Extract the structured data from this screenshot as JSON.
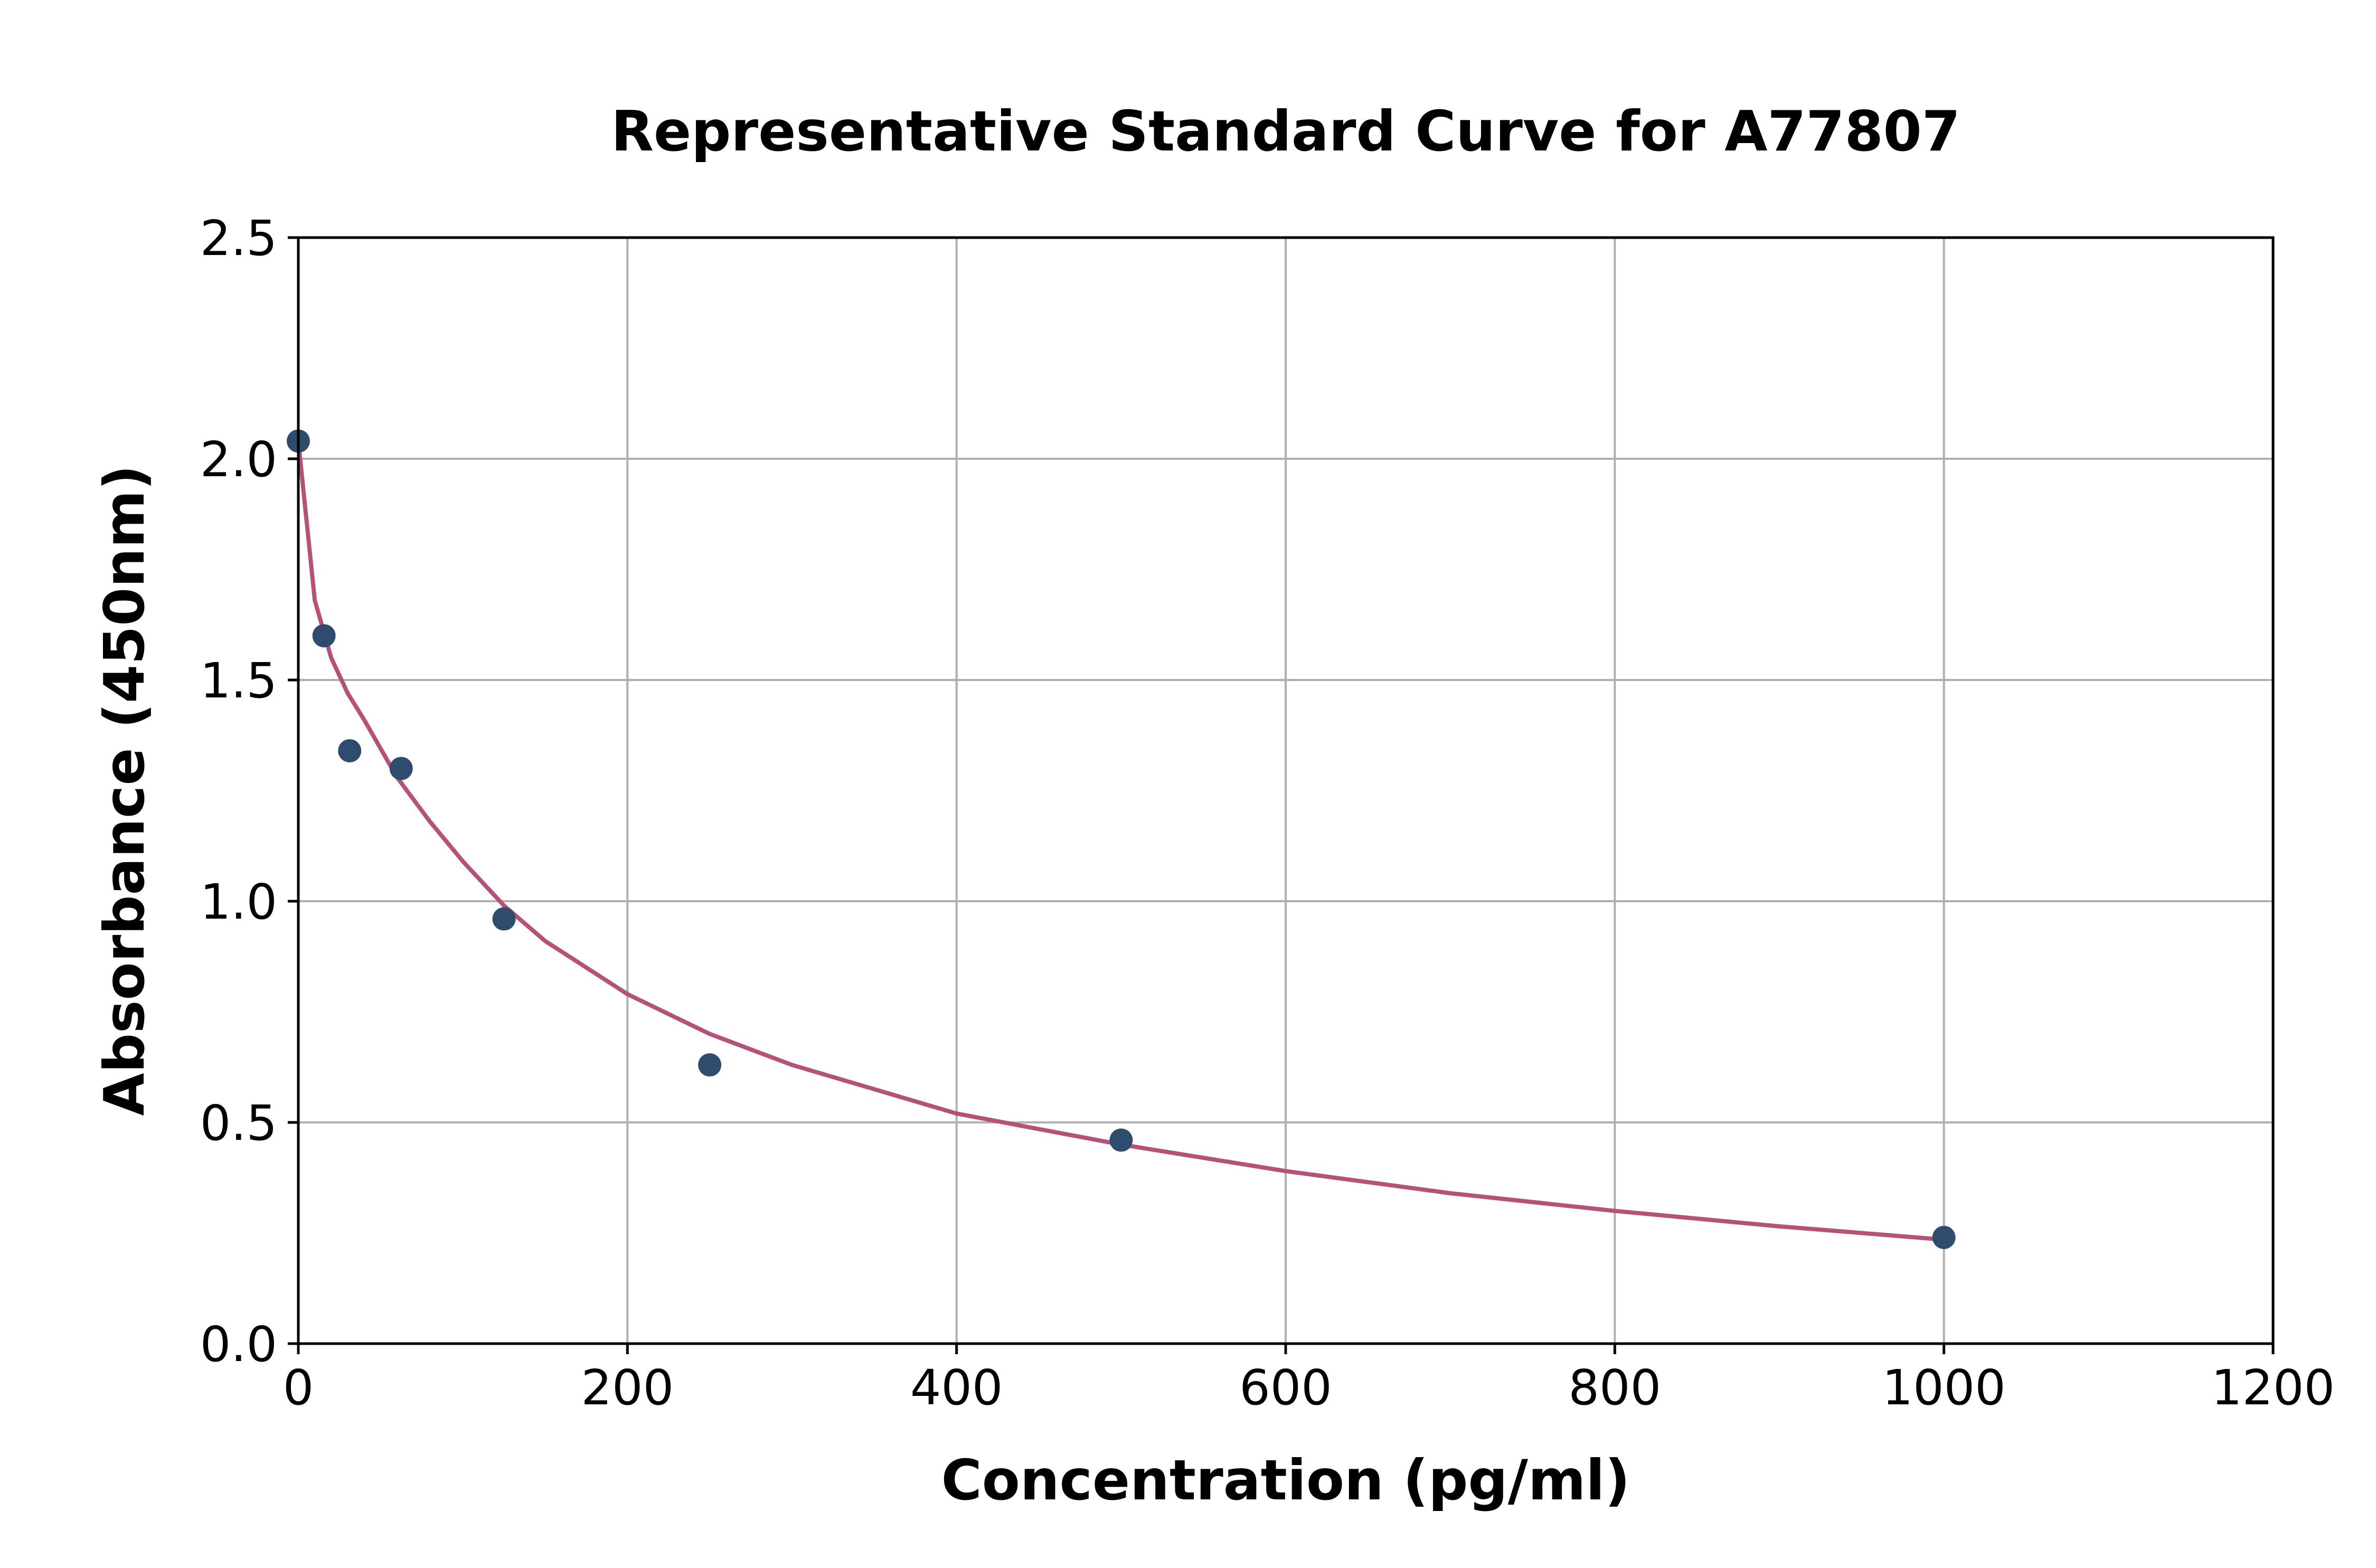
{
  "chart_data": {
    "type": "scatter",
    "title": "Representative Standard Curve for A77807",
    "xlabel": "Concentration (pg/ml)",
    "ylabel": "Absorbance (450nm)",
    "xlim": [
      0,
      1200
    ],
    "ylim": [
      0,
      2.5
    ],
    "xticks": [
      0,
      200,
      400,
      600,
      800,
      1000,
      1200
    ],
    "xtick_labels": [
      "0",
      "200",
      "400",
      "600",
      "800",
      "1000",
      "1200"
    ],
    "yticks": [
      0,
      0.5,
      1.0,
      1.5,
      2.0,
      2.5
    ],
    "ytick_labels": [
      "0.0",
      "0.5",
      "1.0",
      "1.5",
      "2.0",
      "2.5"
    ],
    "grid": true,
    "points": {
      "x": [
        0,
        15.6,
        31.2,
        62.5,
        125,
        250,
        500,
        1000
      ],
      "y": [
        2.04,
        1.6,
        1.34,
        1.3,
        0.96,
        0.63,
        0.46,
        0.24
      ]
    },
    "fit_curve": {
      "x": [
        0,
        10,
        20,
        30,
        40,
        60,
        80,
        100,
        125,
        150,
        200,
        250,
        300,
        400,
        500,
        600,
        700,
        800,
        900,
        1000
      ],
      "y": [
        2.04,
        1.68,
        1.55,
        1.47,
        1.41,
        1.28,
        1.18,
        1.09,
        0.99,
        0.91,
        0.79,
        0.7,
        0.63,
        0.52,
        0.45,
        0.39,
        0.34,
        0.3,
        0.265,
        0.235
      ]
    },
    "colors": {
      "points": "#2f4b6e",
      "fit_curve": "#b5527a"
    }
  }
}
